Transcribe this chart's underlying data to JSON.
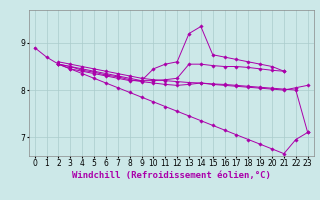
{
  "bg_color": "#cce8e8",
  "line_color": "#aa00aa",
  "grid_color": "#aacccc",
  "xlabel": "Windchill (Refroidissement éolien,°C)",
  "xlabel_fontsize": 6.5,
  "tick_fontsize": 5.5,
  "ylim": [
    6.6,
    9.7
  ],
  "xlim": [
    -0.5,
    23.5
  ],
  "yticks": [
    7,
    8,
    9
  ],
  "xticks": [
    0,
    1,
    2,
    3,
    4,
    5,
    6,
    7,
    8,
    9,
    10,
    11,
    12,
    13,
    14,
    15,
    16,
    17,
    18,
    19,
    20,
    21,
    22,
    23
  ],
  "series": [
    [
      8.9,
      8.7,
      8.55,
      8.45,
      8.35,
      8.25,
      8.15,
      8.05,
      7.95,
      7.85,
      7.75,
      7.65,
      7.55,
      7.45,
      7.35,
      7.25,
      7.15,
      7.05,
      6.95,
      6.85,
      6.75,
      6.65,
      6.95,
      7.1
    ],
    [
      null,
      null,
      8.55,
      8.45,
      8.4,
      8.35,
      8.3,
      8.25,
      8.2,
      8.2,
      8.45,
      8.55,
      8.6,
      9.2,
      9.35,
      8.75,
      8.7,
      8.65,
      8.6,
      8.55,
      8.5,
      8.4,
      null,
      null
    ],
    [
      null,
      null,
      8.55,
      8.5,
      8.45,
      8.4,
      8.35,
      8.3,
      8.25,
      8.2,
      8.2,
      8.22,
      8.25,
      8.55,
      8.55,
      8.52,
      8.5,
      8.5,
      8.48,
      8.45,
      8.42,
      8.4,
      null,
      null
    ],
    [
      null,
      null,
      8.55,
      8.5,
      8.42,
      8.38,
      8.32,
      8.28,
      8.22,
      8.18,
      8.15,
      8.12,
      8.1,
      8.12,
      8.15,
      8.12,
      8.1,
      8.08,
      8.06,
      8.04,
      8.02,
      8.0,
      8.05,
      8.1
    ],
    [
      null,
      null,
      8.6,
      8.55,
      8.5,
      8.45,
      8.4,
      8.35,
      8.3,
      8.25,
      8.22,
      8.2,
      8.18,
      8.16,
      8.15,
      8.13,
      8.12,
      8.1,
      8.08,
      8.06,
      8.04,
      8.02,
      8.0,
      7.1
    ]
  ]
}
